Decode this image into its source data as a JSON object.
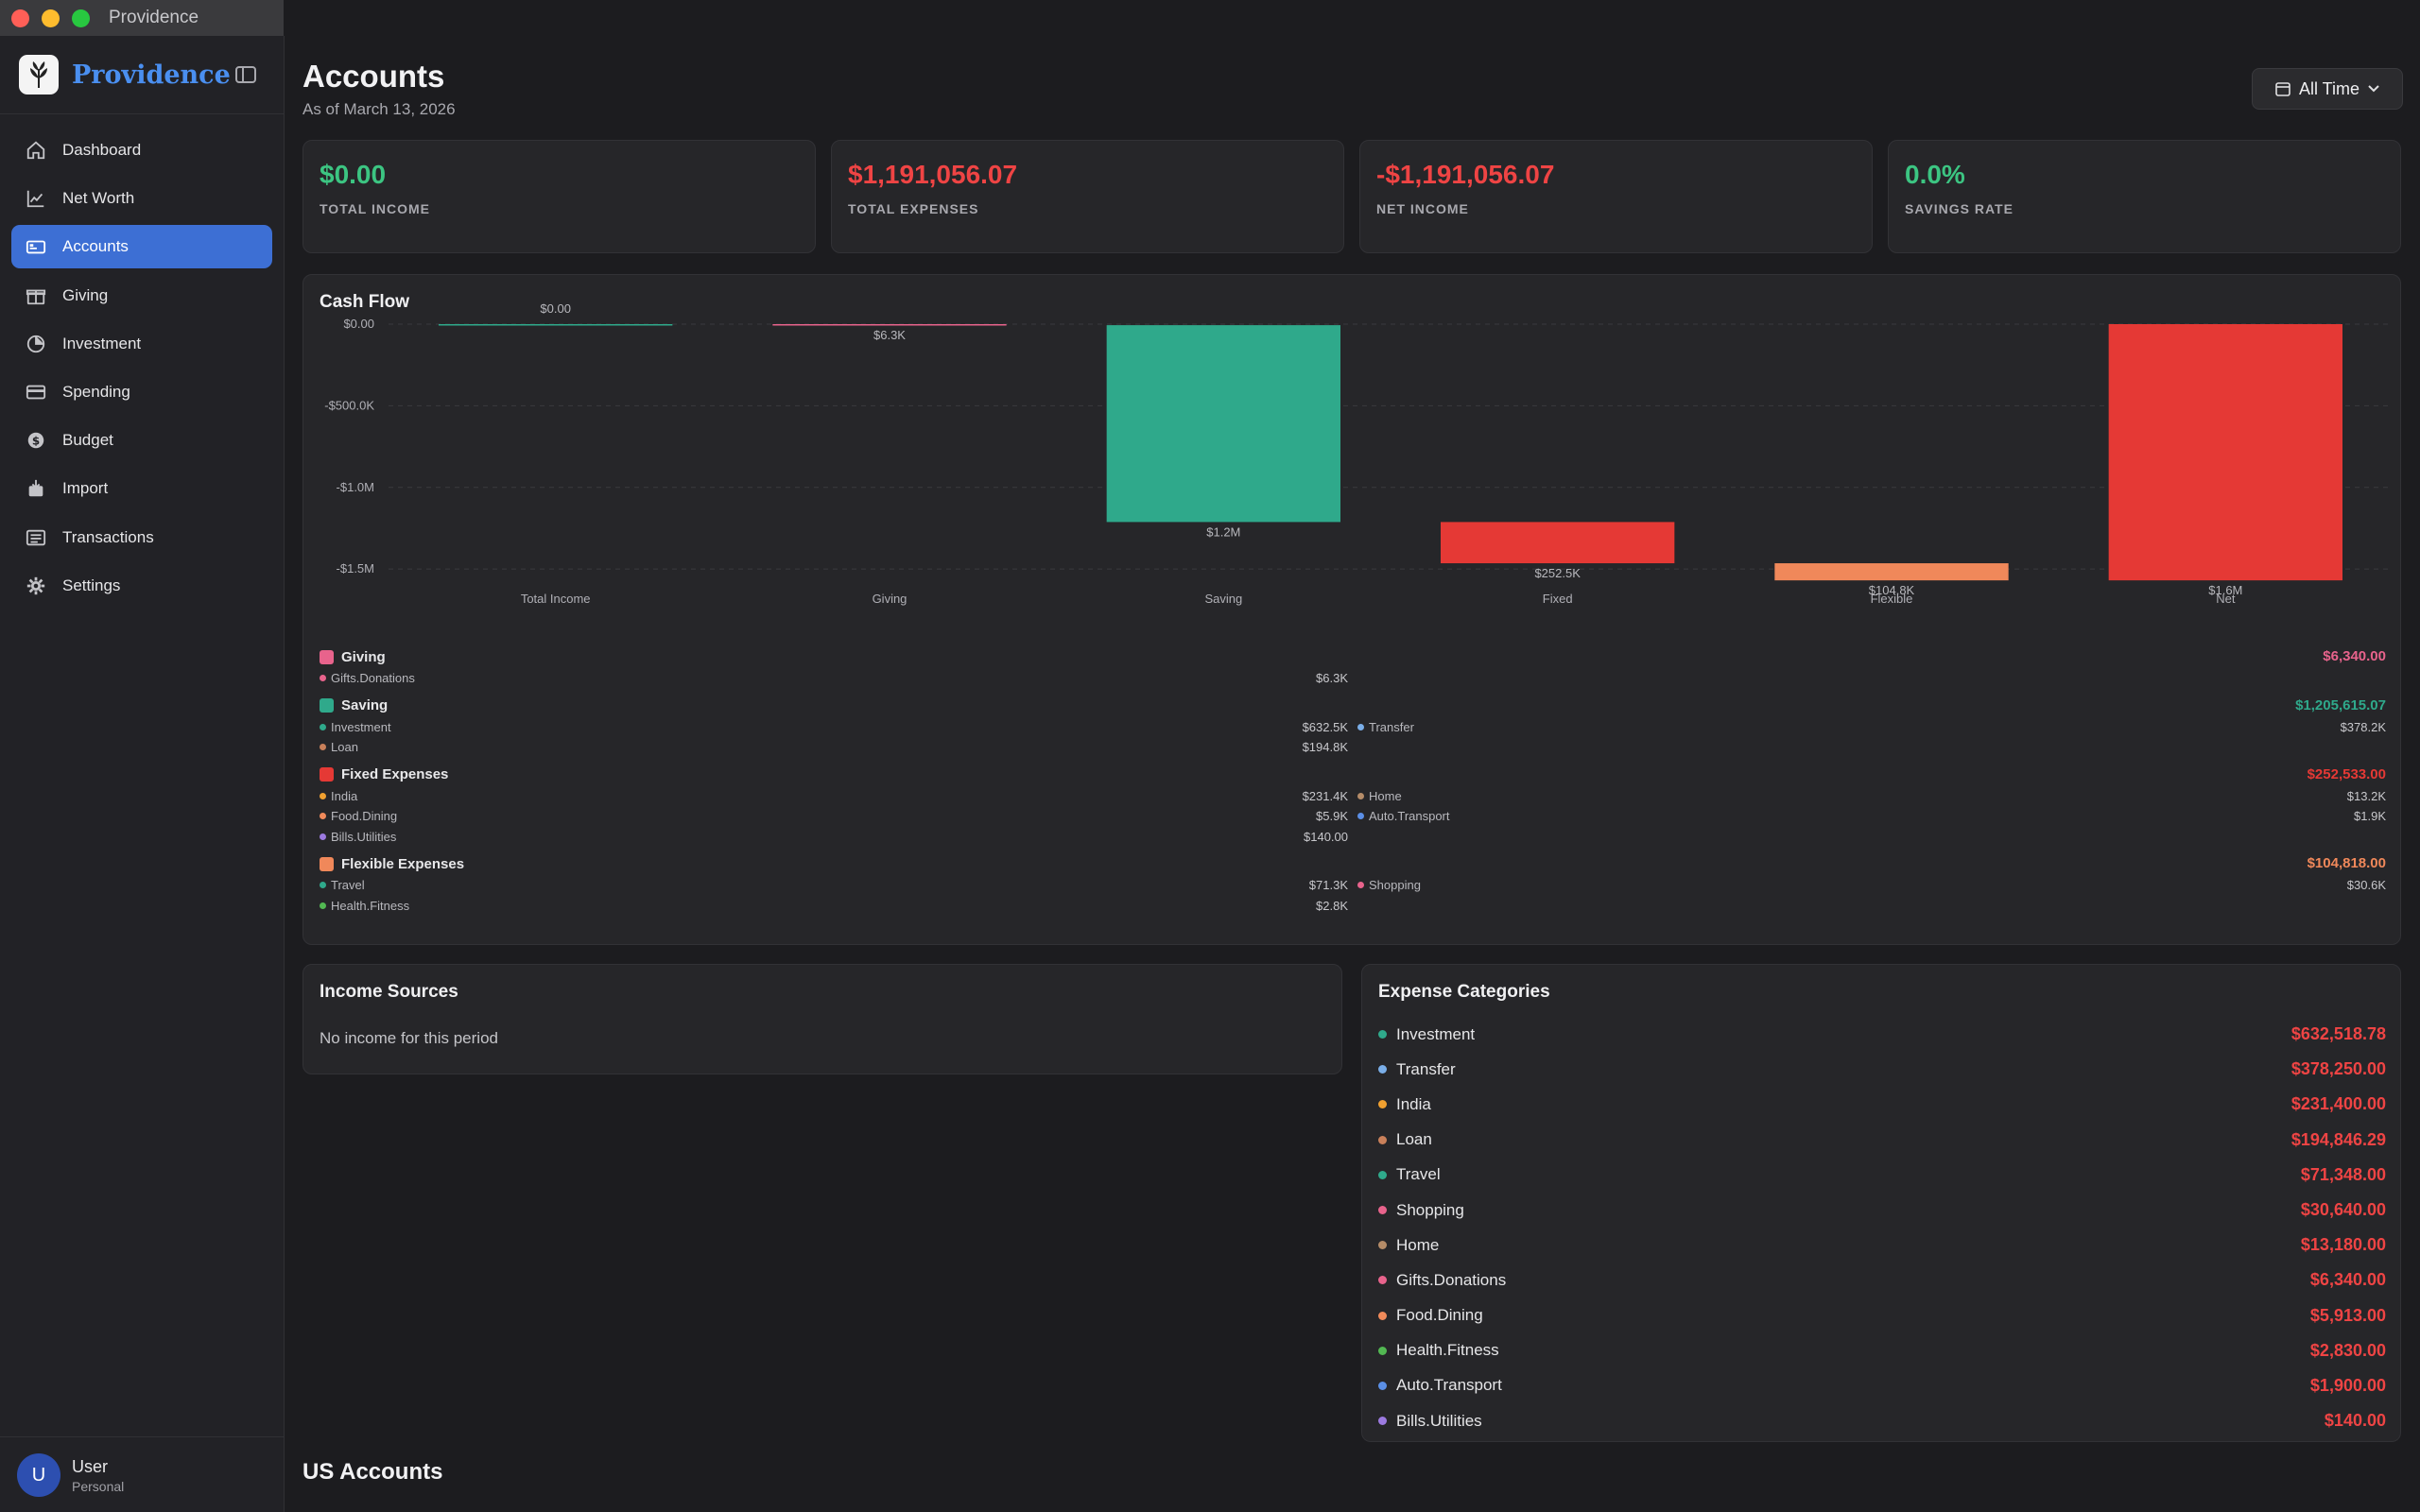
{
  "window": {
    "title": "Providence"
  },
  "brand": {
    "name": "Providence"
  },
  "nav": [
    {
      "label": "Dashboard",
      "icon": "house-icon",
      "active": false
    },
    {
      "label": "Net Worth",
      "icon": "chart-line-icon",
      "active": false
    },
    {
      "label": "Accounts",
      "icon": "wallet-icon",
      "active": true
    },
    {
      "label": "Giving",
      "icon": "gift-icon",
      "active": false
    },
    {
      "label": "Investment",
      "icon": "pie-chart-icon",
      "active": false
    },
    {
      "label": "Spending",
      "icon": "credit-card-icon",
      "active": false
    },
    {
      "label": "Budget",
      "icon": "dollar-circle-icon",
      "active": false
    },
    {
      "label": "Import",
      "icon": "import-icon",
      "active": false
    },
    {
      "label": "Transactions",
      "icon": "list-icon",
      "active": false
    },
    {
      "label": "Settings",
      "icon": "gear-icon",
      "active": false
    }
  ],
  "user": {
    "initial": "U",
    "name": "User",
    "subtitle": "Personal"
  },
  "header": {
    "title": "Accounts",
    "subtitle": "As of March 13, 2026",
    "time_filter": "All Time"
  },
  "stats": [
    {
      "value": "$0.00",
      "label": "TOTAL INCOME",
      "tone": "pos"
    },
    {
      "value": "$1,191,056.07",
      "label": "TOTAL EXPENSES",
      "tone": "neg"
    },
    {
      "value": "-$1,191,056.07",
      "label": "NET INCOME",
      "tone": "neg"
    },
    {
      "value": "0.0%",
      "label": "SAVINGS RATE",
      "tone": "pos"
    }
  ],
  "cashflow": {
    "title": "Cash Flow",
    "legend": [
      {
        "name": "Giving",
        "total": "$6,340.00",
        "color": "#e8638c",
        "items": [
          {
            "name": "Gifts.Donations",
            "value": "$6.3K",
            "color": "#e8638c"
          }
        ]
      },
      {
        "name": "Saving",
        "total": "$1,205,615.07",
        "color": "#2fa98b",
        "items": [
          {
            "name": "Investment",
            "value": "$632.5K",
            "color": "#2fa98b"
          },
          {
            "name": "Transfer",
            "value": "$378.2K",
            "color": "#7aaee8"
          },
          {
            "name": "Loan",
            "value": "$194.8K",
            "color": "#c9805a"
          }
        ]
      },
      {
        "name": "Fixed Expenses",
        "total": "$252,533.00",
        "color": "#e53935",
        "items": [
          {
            "name": "India",
            "value": "$231.4K",
            "color": "#f0a030"
          },
          {
            "name": "Home",
            "value": "$13.2K",
            "color": "#b58c68"
          },
          {
            "name": "Food.Dining",
            "value": "$5.9K",
            "color": "#f08a5a"
          },
          {
            "name": "Auto.Transport",
            "value": "$1.9K",
            "color": "#5b8fe6"
          },
          {
            "name": "Bills.Utilities",
            "value": "$140.00",
            "color": "#9c7ae0"
          }
        ]
      },
      {
        "name": "Flexible Expenses",
        "total": "$104,818.00",
        "color": "#f0885a",
        "items": [
          {
            "name": "Travel",
            "value": "$71.3K",
            "color": "#2fa98b"
          },
          {
            "name": "Shopping",
            "value": "$30.6K",
            "color": "#e8638c"
          },
          {
            "name": "Health.Fitness",
            "value": "$2.8K",
            "color": "#52b852"
          }
        ]
      }
    ]
  },
  "chart_data": {
    "type": "bar",
    "title": "Cash Flow",
    "categories": [
      "Total Income",
      "Giving",
      "Saving",
      "Fixed",
      "Flexible",
      "Net"
    ],
    "tick_labels": [
      "Total Income",
      "Giving",
      "Saving",
      "Fixed",
      "Flexible",
      "Net"
    ],
    "bars": [
      {
        "category": "Total Income",
        "start": 0,
        "end": 0,
        "label": "$0.00",
        "color": "#2fa98b"
      },
      {
        "category": "Giving",
        "start": 0,
        "end": -6340,
        "label": "$6.3K",
        "color": "#e8638c"
      },
      {
        "category": "Saving",
        "start": -6340,
        "end": -1211955.07,
        "label": "$1.2M",
        "color": "#2fa98b"
      },
      {
        "category": "Fixed",
        "start": -1211955.07,
        "end": -1464488.07,
        "label": "$252.5K",
        "color": "#e53935"
      },
      {
        "category": "Flexible",
        "start": -1464488.07,
        "end": -1569306.07,
        "label": "$104.8K",
        "color": "#f0885a"
      },
      {
        "category": "Net",
        "start": 0,
        "end": -1569306.07,
        "label": "$1.6M",
        "color": "#e53935"
      }
    ],
    "yticks": [
      {
        "value": 0,
        "label": "$0.00"
      },
      {
        "value": -500000,
        "label": "-$500.0K"
      },
      {
        "value": -1000000,
        "label": "-$1.0M"
      },
      {
        "value": -1500000,
        "label": "-$1.5M"
      }
    ],
    "ylim": [
      -1580000,
      0
    ],
    "grid": true
  },
  "income": {
    "title": "Income Sources",
    "empty": "No income for this period"
  },
  "expenses": {
    "title": "Expense Categories",
    "items": [
      {
        "name": "Investment",
        "amount": "$632,518.78",
        "color": "#2fa98b"
      },
      {
        "name": "Transfer",
        "amount": "$378,250.00",
        "color": "#7aaee8"
      },
      {
        "name": "India",
        "amount": "$231,400.00",
        "color": "#f0a030"
      },
      {
        "name": "Loan",
        "amount": "$194,846.29",
        "color": "#c9805a"
      },
      {
        "name": "Travel",
        "amount": "$71,348.00",
        "color": "#2fa98b"
      },
      {
        "name": "Shopping",
        "amount": "$30,640.00",
        "color": "#e8638c"
      },
      {
        "name": "Home",
        "amount": "$13,180.00",
        "color": "#b58c68"
      },
      {
        "name": "Gifts.Donations",
        "amount": "$6,340.00",
        "color": "#e8638c"
      },
      {
        "name": "Food.Dining",
        "amount": "$5,913.00",
        "color": "#f08a5a"
      },
      {
        "name": "Health.Fitness",
        "amount": "$2,830.00",
        "color": "#52b852"
      },
      {
        "name": "Auto.Transport",
        "amount": "$1,900.00",
        "color": "#5b8fe6"
      },
      {
        "name": "Bills.Utilities",
        "amount": "$140.00",
        "color": "#9c7ae0"
      }
    ]
  },
  "accounts_section": {
    "title": "US Accounts"
  }
}
